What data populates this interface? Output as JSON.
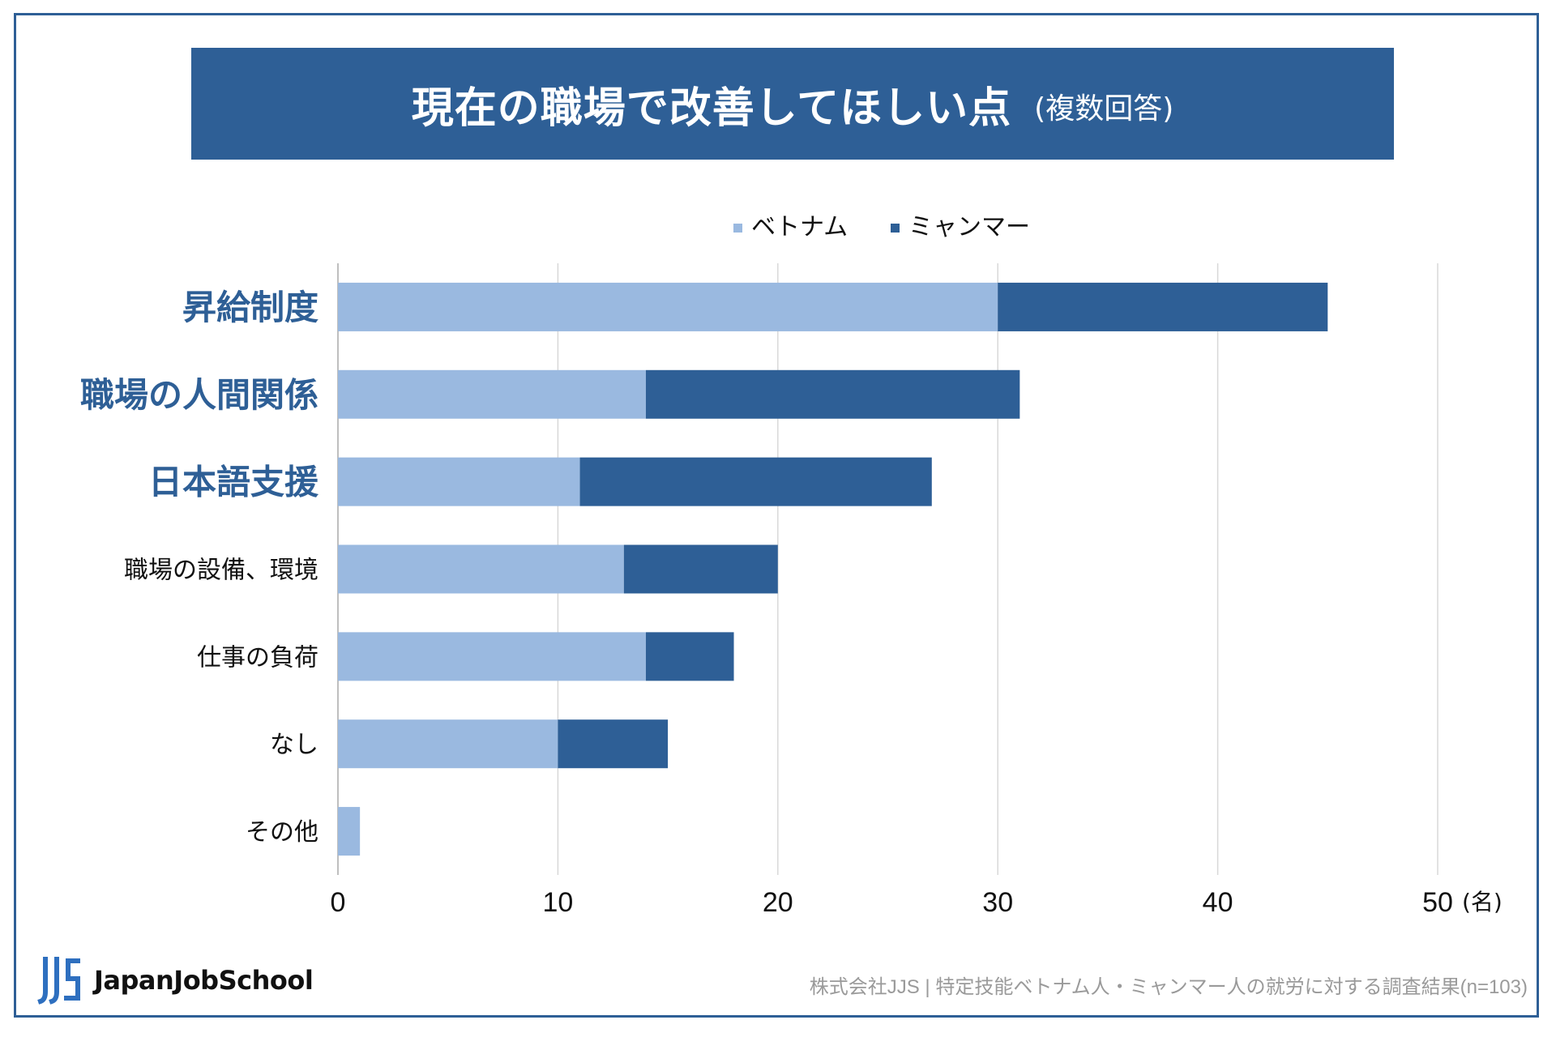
{
  "title": {
    "main": "現在の職場で改善してほしい点",
    "sub": "(複数回答)"
  },
  "colors": {
    "vietnam": "#9ab9e0",
    "myanmar": "#2e5f96",
    "bold_label": "#2e5f96",
    "normal_label": "#111111",
    "grid": "#d8d8d8",
    "axis": "#bfbfbf"
  },
  "chart_data": {
    "type": "bar",
    "orientation": "horizontal",
    "stacked": true,
    "categories": [
      "昇給制度",
      "職場の人間関係",
      "日本語支援",
      "職場の設備、環境",
      "仕事の負荷",
      "なし",
      "その他"
    ],
    "highlighted_categories": [
      "昇給制度",
      "職場の人間関係",
      "日本語支援"
    ],
    "series": [
      {
        "name": "ベトナム",
        "values": [
          30,
          14,
          11,
          13,
          14,
          10,
          1
        ]
      },
      {
        "name": "ミャンマー",
        "values": [
          15,
          17,
          16,
          7,
          4,
          5,
          0
        ]
      }
    ],
    "xlim": [
      0,
      50
    ],
    "xticks": [
      0,
      10,
      20,
      30,
      40,
      50
    ],
    "xticklabels": [
      "0",
      "10",
      "20",
      "30",
      "40",
      "50"
    ],
    "unit_label": "(名)",
    "legend": {
      "placement": "top-center",
      "items": [
        "ベトナム",
        "ミャンマー"
      ]
    },
    "grid": true
  },
  "footer": {
    "brand": "JapanJobSchool",
    "logo_text": "JJS",
    "note": "株式会社JJS | 特定技能ベトナム人・ミャンマー人の就労に対する調査結果(n=103)"
  }
}
